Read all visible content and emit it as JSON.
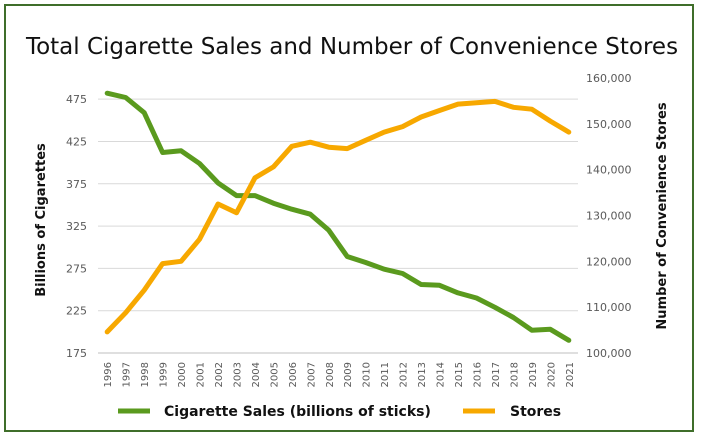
{
  "chart_data": {
    "type": "line",
    "title": "Total Cigarette Sales and Number of Convenience Stores",
    "ylabel": "Billions of Cigarettes",
    "y2label": "Number of Convenience Stores",
    "ylim": [
      175,
      500
    ],
    "y2lim": [
      100000,
      160000
    ],
    "yticks": [
      "175",
      "225",
      "275",
      "325",
      "375",
      "425",
      "475"
    ],
    "yticks_values": [
      175,
      225,
      275,
      325,
      375,
      425,
      475
    ],
    "y2ticks": [
      "100,000",
      "110,000",
      "120,000",
      "130,000",
      "140,000",
      "150,000",
      "160,000"
    ],
    "y2ticks_values": [
      100000,
      110000,
      120000,
      130000,
      140000,
      150000,
      160000
    ],
    "categories": [
      "1996",
      "1997",
      "1998",
      "1999",
      "2000",
      "2001",
      "2002",
      "2003",
      "2004",
      "2005",
      "2006",
      "2007",
      "2008",
      "2009",
      "2010",
      "2011",
      "2012",
      "2013",
      "2014",
      "2015",
      "2016",
      "2017",
      "2018",
      "2019",
      "2020",
      "2021"
    ],
    "grid": true,
    "legend_position": "bottom",
    "series": [
      {
        "name": "Cigarette Sales (billions of sticks)",
        "axis": "left",
        "color": "#5a9a1e",
        "values": [
          482,
          477,
          459,
          412,
          414,
          399,
          376,
          361,
          361,
          352,
          345,
          339,
          320,
          289,
          282,
          274,
          269,
          256,
          255,
          246,
          240,
          229,
          217,
          202,
          203,
          190
        ]
      },
      {
        "name": "Stores",
        "axis": "right",
        "color": "#f7a800",
        "values": [
          104600,
          108800,
          113700,
          119500,
          120000,
          124800,
          132500,
          130600,
          138200,
          140600,
          145100,
          146000,
          144900,
          144600,
          146400,
          148200,
          149400,
          151500,
          152900,
          154300,
          154600,
          154900,
          153600,
          153200,
          150600,
          148200
        ]
      }
    ]
  }
}
